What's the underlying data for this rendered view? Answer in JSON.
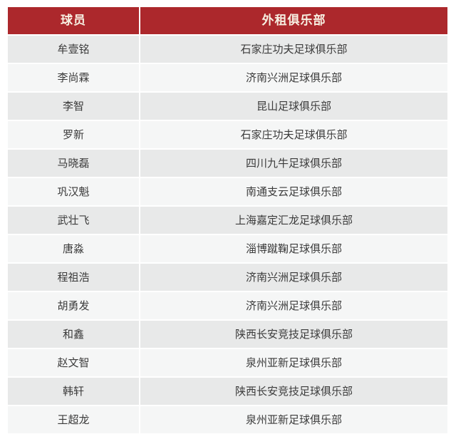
{
  "colors": {
    "header_bg": "#AC282C",
    "header_text": "#F7F0E2",
    "row_odd_bg": "#E8E9E9",
    "row_even_bg": "#F5F6F6",
    "body_text": "#3B3B3B",
    "divider": "#FFFFFF",
    "page_bg": "#FFFFFF"
  },
  "chart_data": {
    "type": "table",
    "columns": [
      "球员",
      "外租俱乐部"
    ],
    "rows": [
      [
        "牟壹铭",
        "石家庄功夫足球俱乐部"
      ],
      [
        "李尚霖",
        "济南兴洲足球俱乐部"
      ],
      [
        "李智",
        "昆山足球俱乐部"
      ],
      [
        "罗新",
        "石家庄功夫足球俱乐部"
      ],
      [
        "马晓磊",
        "四川九牛足球俱乐部"
      ],
      [
        "巩汉魁",
        "南通支云足球俱乐部"
      ],
      [
        "武壮飞",
        "上海嘉定汇龙足球俱乐部"
      ],
      [
        "唐淼",
        "淄博蹴鞠足球俱乐部"
      ],
      [
        "程祖浩",
        "济南兴洲足球俱乐部"
      ],
      [
        "胡勇发",
        "济南兴洲足球俱乐部"
      ],
      [
        "和鑫",
        "陕西长安竞技足球俱乐部"
      ],
      [
        "赵文智",
        "泉州亚新足球俱乐部"
      ],
      [
        "韩轩",
        "陕西长安竞技足球俱乐部"
      ],
      [
        "王超龙",
        "泉州亚新足球俱乐部"
      ]
    ],
    "title": "",
    "layout_hints": {
      "header_style": "dark-red banded header, cream bold text",
      "row_striping": "odd rows light gray, even rows near-white",
      "alignment": "all cells centered"
    }
  }
}
